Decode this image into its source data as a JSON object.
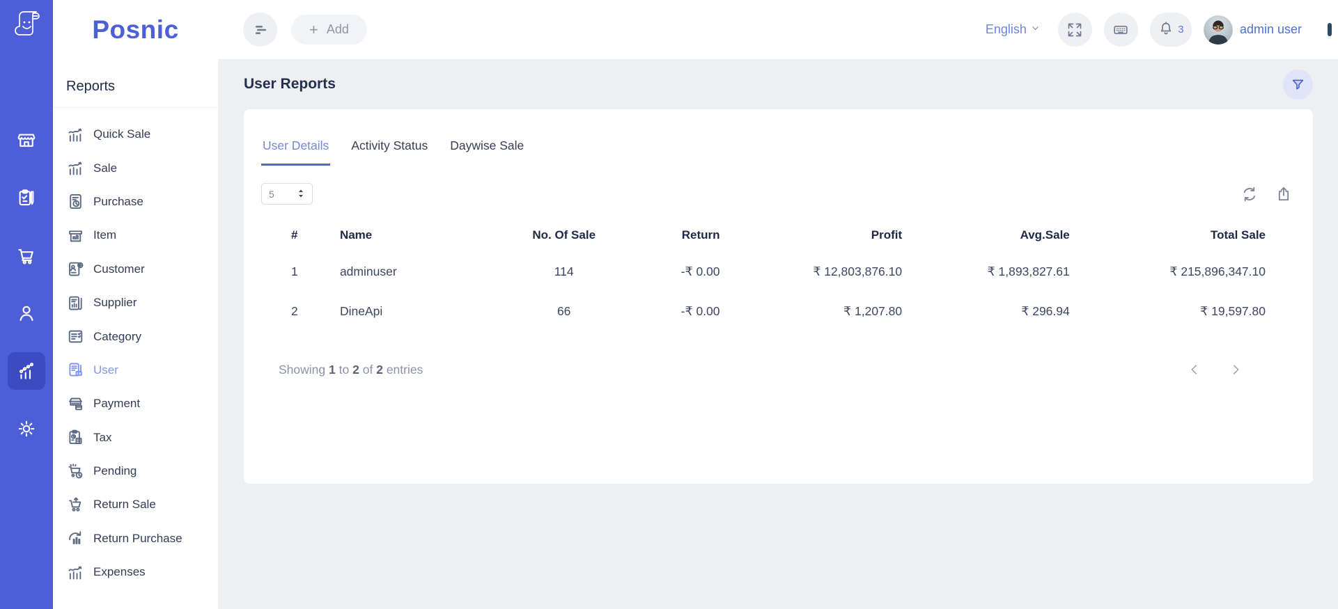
{
  "brand": {
    "name": "Posnic",
    "logo_icon": "receipt-logo-icon"
  },
  "topbar": {
    "menu_icon": "menu-lines-icon",
    "add": {
      "label": "Add",
      "plus": "+"
    },
    "language": {
      "label": "English",
      "chevron_icon": "chevron-down-icon"
    },
    "fullscreen_icon": "fullscreen-icon",
    "keyboard_icon": "keyboard-icon",
    "bell_icon": "bell-icon",
    "notifications_count": "3",
    "user": {
      "name": "admin user",
      "chevron_icon": "chevron-down-icon"
    }
  },
  "rail": {
    "items": [
      {
        "name": "store",
        "icon": "store-icon"
      },
      {
        "name": "orders",
        "icon": "clipboard-icon"
      },
      {
        "name": "cart",
        "icon": "cart-icon"
      },
      {
        "name": "customers",
        "icon": "person-icon"
      },
      {
        "name": "reports",
        "icon": "chart-icon"
      },
      {
        "name": "settings",
        "icon": "gear-icon"
      }
    ]
  },
  "sidebar": {
    "heading": "Reports",
    "items": [
      {
        "label": "Quick Sale",
        "icon": "chart-trend-icon"
      },
      {
        "label": "Sale",
        "icon": "chart-trend-icon"
      },
      {
        "label": "Purchase",
        "icon": "invoice-icon"
      },
      {
        "label": "Item",
        "icon": "item-box-icon"
      },
      {
        "label": "Customer",
        "icon": "customer-doc-icon"
      },
      {
        "label": "Supplier",
        "icon": "supplier-doc-icon"
      },
      {
        "label": "Category",
        "icon": "category-list-icon"
      },
      {
        "label": "User",
        "icon": "user-doc-icon"
      },
      {
        "label": "Payment",
        "icon": "payment-icon"
      },
      {
        "label": "Tax",
        "icon": "tax-icon"
      },
      {
        "label": "Pending",
        "icon": "cart-clock-icon"
      },
      {
        "label": "Return Sale",
        "icon": "cart-up-icon"
      },
      {
        "label": "Return Purchase",
        "icon": "return-rotate-icon"
      },
      {
        "label": "Expenses",
        "icon": "chart-trend-icon"
      }
    ]
  },
  "page": {
    "title": "User Reports",
    "filter_icon": "filter-icon"
  },
  "tabs": [
    {
      "label": "User Details"
    },
    {
      "label": "Activity Status"
    },
    {
      "label": "Daywise Sale"
    }
  ],
  "table": {
    "page_size": "5",
    "spinner_icon": "spinner-arrows-icon",
    "refresh_icon": "refresh-icon",
    "export_icon": "export-icon",
    "columns": [
      "#",
      "Name",
      "No. Of Sale",
      "Return",
      "Profit",
      "Avg.Sale",
      "Total Sale"
    ],
    "rows": [
      [
        "1",
        "adminuser",
        "114",
        "-₹ 0.00",
        "₹ 12,803,876.10",
        "₹ 1,893,827.61",
        "₹ 215,896,347.10"
      ],
      [
        "2",
        "DineApi",
        "66",
        "-₹ 0.00",
        "₹ 1,207.80",
        "₹ 296.94",
        "₹ 19,597.80"
      ]
    ],
    "footer": {
      "prefix": "Showing",
      "from": "1",
      "to_word": "to",
      "to": "2",
      "of_word": "of",
      "total": "2",
      "suffix": "entries"
    },
    "pager": {
      "prev_icon": "chevron-left-icon",
      "next_icon": "chevron-right-icon"
    }
  },
  "colors": {
    "accent": "#4b5fd7",
    "rail": "#4e5ed6",
    "rail_active": "#3c4cc0",
    "active_link": "#8297e8",
    "heading": "#1d2945",
    "text": "#3b4660",
    "muted": "#8a92a5",
    "bg": "#edeff3",
    "tab_active": "#7387da",
    "tab_underline": "#5065cd",
    "filter_bg": "#dfe4f8",
    "filter_icon": "#4156cc",
    "button_bg": "#eef0f4",
    "icon_gray": "#707b8f",
    "link_blue": "#5c77d9"
  }
}
